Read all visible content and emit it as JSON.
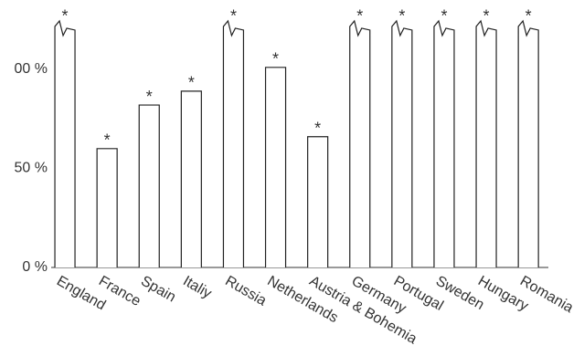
{
  "chart_data": {
    "type": "bar",
    "categories": [
      "England",
      "France",
      "Spain",
      "Italiy",
      "Russia",
      "Netherlands",
      "Austria & Bohemia",
      "Germany",
      "Portugal",
      "Sweden",
      "Hungary",
      "Romania"
    ],
    "values": [
      121,
      60,
      82,
      89,
      121,
      101,
      66,
      120,
      120,
      123,
      123,
      121
    ],
    "annotations": [
      "*",
      "*",
      "*",
      "*",
      "*",
      "*",
      "*",
      "*",
      "*",
      "*",
      "*",
      "*"
    ],
    "color": "#ffffff",
    "ylim": [
      0,
      118
    ],
    "yticks": [
      0,
      50,
      {
        "value": 100,
        "label": "00 %"
      }
    ],
    "ytick_labels": [
      "0 %",
      "50 %"
    ]
  }
}
